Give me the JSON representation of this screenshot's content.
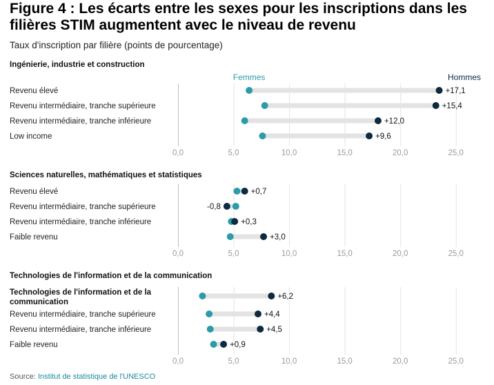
{
  "title": "Figure 4 : Les écarts entre les sexes pour les inscriptions dans les filières STIM augmentent avec le niveau de revenu",
  "subtitle": "Taux d'inscription par filière (points de pourcentage)",
  "source": {
    "label": "Source:",
    "text": "Institut de statistique de l'UNESCO"
  },
  "colors": {
    "women": "#2a9ca8",
    "men": "#0c2a40",
    "connector": "#e3e3e3",
    "grid": "#e3e3e3",
    "axis": "#bdbdbd",
    "tick_text": "#9a9a9a"
  },
  "chart_data": {
    "type": "dumbbell",
    "series": [
      {
        "name": "Femmes"
      },
      {
        "name": "Hommes"
      }
    ],
    "xlim": [
      0,
      27.5
    ],
    "xticks": [
      "0,0",
      "5,0",
      "10,0",
      "15,0",
      "20,0",
      "25,0"
    ],
    "xtick_values": [
      0,
      5,
      10,
      15,
      20,
      25
    ],
    "panels": [
      {
        "title": "Ingénierie, industrie et construction",
        "rows": [
          {
            "label": "Revenu élevé",
            "women": 6.4,
            "men": 23.5,
            "gap_label": "+17,1"
          },
          {
            "label": "Revenu intermédiaire, tranche supérieure",
            "women": 7.8,
            "men": 23.2,
            "gap_label": "+15,4"
          },
          {
            "label": "Revenu intermédiaire, tranche inférieure",
            "women": 6.0,
            "men": 18.0,
            "gap_label": "+12,0"
          },
          {
            "label": "Low income",
            "women": 7.6,
            "men": 17.2,
            "gap_label": "+9,6"
          }
        ]
      },
      {
        "title": "Sciences naturelles, mathématiques et statistiques",
        "rows": [
          {
            "label": "Revenu élevé",
            "women": 5.3,
            "men": 6.0,
            "gap_label": "+0,7"
          },
          {
            "label": "Revenu intermédiaire, tranche supérieure",
            "women": 5.2,
            "men": 4.4,
            "gap_label": "-0,8"
          },
          {
            "label": "Revenu intermédiaire, tranche inférieure",
            "women": 4.8,
            "men": 5.1,
            "gap_label": "+0,3"
          },
          {
            "label": "Faible revenu",
            "women": 4.7,
            "men": 7.7,
            "gap_label": "+3,0"
          }
        ]
      },
      {
        "title": "Technologies de l'information et de la communication",
        "rows": [
          {
            "label": "Technologies de l'information et de la communication",
            "women": 2.2,
            "men": 8.4,
            "gap_label": "+6,2",
            "bold": true
          },
          {
            "label": "Revenu intermédiaire, tranche supérieure",
            "women": 2.8,
            "men": 7.2,
            "gap_label": "+4,4"
          },
          {
            "label": "Revenu intermédiaire, tranche inférieure",
            "women": 2.9,
            "men": 7.4,
            "gap_label": "+4,5"
          },
          {
            "label": "Faible revenu",
            "women": 3.2,
            "men": 4.1,
            "gap_label": "+0,9"
          }
        ]
      }
    ]
  }
}
